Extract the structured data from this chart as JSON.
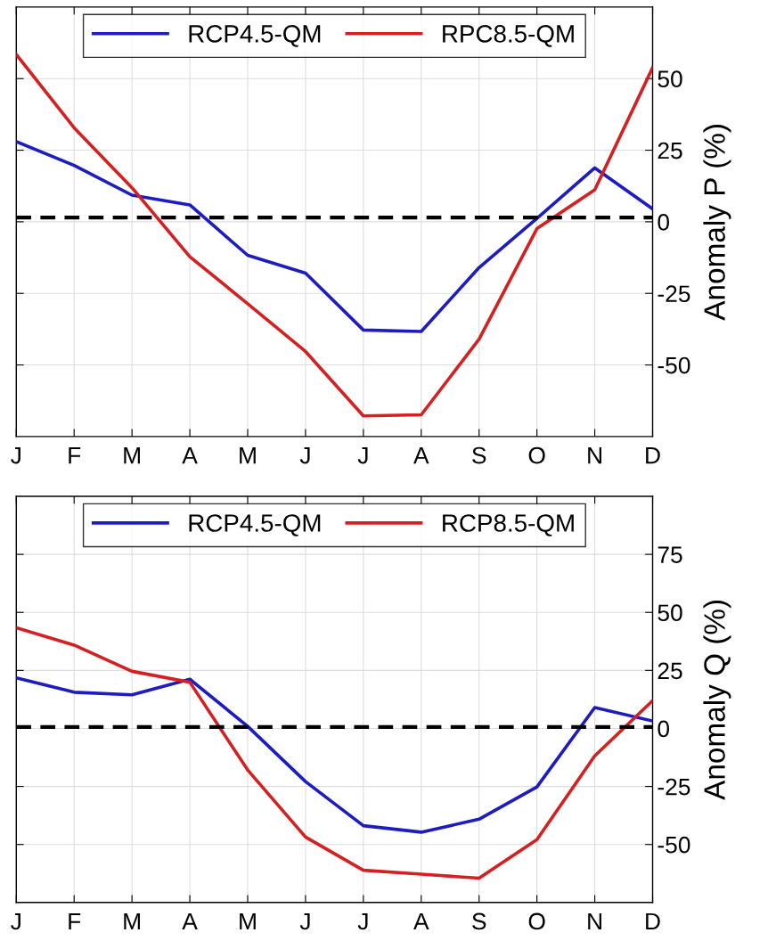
{
  "chart_data": [
    {
      "type": "line",
      "ylabel": "Anomaly P (%)",
      "categories": [
        "J",
        "F",
        "M",
        "A",
        "M",
        "J",
        "J",
        "A",
        "S",
        "O",
        "N",
        "D"
      ],
      "series": [
        {
          "name": "RCP4.5-QM",
          "color": "#1c1cc0",
          "values": [
            28,
            19.7,
            9.3,
            5.9,
            -11.7,
            -17.9,
            -37.8,
            -38.3,
            -16,
            1.2,
            18.8,
            4.5
          ]
        },
        {
          "name": "RPC8.5-QM",
          "color": "#d42020",
          "values": [
            58.4,
            32.8,
            11.9,
            -12.2,
            -28.6,
            -45.3,
            -67.8,
            -67.4,
            -41,
            -2.4,
            11.2,
            53.8
          ]
        }
      ],
      "ylim": [
        -75,
        75
      ],
      "yticks": [
        -50,
        -25,
        0,
        25,
        50
      ],
      "ref_lines": [
        {
          "axis": "y",
          "value": 1.5,
          "color": "#000000",
          "line_style": "dashed"
        }
      ],
      "grid": true,
      "legend": "top",
      "line_style": "solid"
    },
    {
      "type": "line",
      "ylabel": "Anomaly Q (%)",
      "categories": [
        "J",
        "F",
        "M",
        "A",
        "M",
        "J",
        "J",
        "A",
        "S",
        "O",
        "N",
        "D"
      ],
      "series": [
        {
          "name": "RCP4.5-QM",
          "color": "#1c1cc0",
          "values": [
            21.8,
            15.6,
            14.5,
            21.2,
            0.9,
            -22.9,
            -41.9,
            -44.7,
            -39.1,
            -25.2,
            9,
            3.2
          ]
        },
        {
          "name": "RCP8.5-QM",
          "color": "#d42020",
          "values": [
            43.4,
            35.9,
            24.6,
            19.9,
            -17.9,
            -46.8,
            -61.1,
            -62.8,
            -64.5,
            -47.9,
            -11.8,
            12
          ]
        }
      ],
      "ylim": [
        -75,
        100
      ],
      "yticks": [
        -50,
        -25,
        0,
        25,
        50,
        75
      ],
      "ref_lines": [
        {
          "axis": "y",
          "value": 0.6,
          "color": "#000000",
          "line_style": "dashed"
        }
      ],
      "grid": true,
      "legend": "top",
      "line_style": "solid"
    }
  ]
}
